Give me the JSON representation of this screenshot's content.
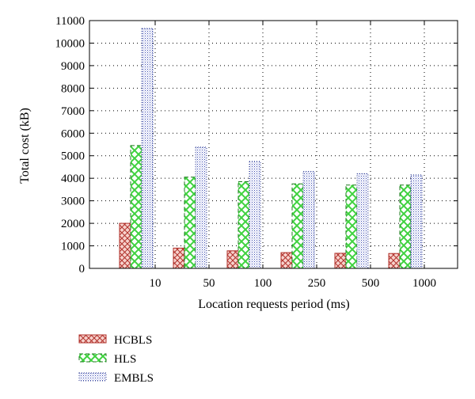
{
  "chart_data": {
    "type": "bar",
    "xlabel": "Location requests period (ms)",
    "ylabel": "Total cost (kB)",
    "categories": [
      "10",
      "50",
      "100",
      "250",
      "500",
      "1000"
    ],
    "ylim": [
      0,
      11000
    ],
    "yticks": [
      0,
      1000,
      2000,
      3000,
      4000,
      5000,
      6000,
      7000,
      8000,
      9000,
      10000,
      11000
    ],
    "grid": true,
    "legend_position": "bottom-left",
    "series": [
      {
        "name": "HCBLS",
        "pattern": "crosshatch",
        "color": "#b0302a",
        "fill": "#f5c9c4",
        "values": [
          2000,
          900,
          780,
          700,
          670,
          660
        ]
      },
      {
        "name": "HLS",
        "pattern": "diamond",
        "color": "#1f7a1f",
        "fill": "#7de07d",
        "values": [
          5450,
          4050,
          3850,
          3750,
          3700,
          3700
        ]
      },
      {
        "name": "EMBLS",
        "pattern": "dots",
        "color": "#2b3a8f",
        "fill": "#c9cdf2",
        "values": [
          10650,
          5380,
          4750,
          4300,
          4200,
          4150
        ]
      }
    ]
  }
}
